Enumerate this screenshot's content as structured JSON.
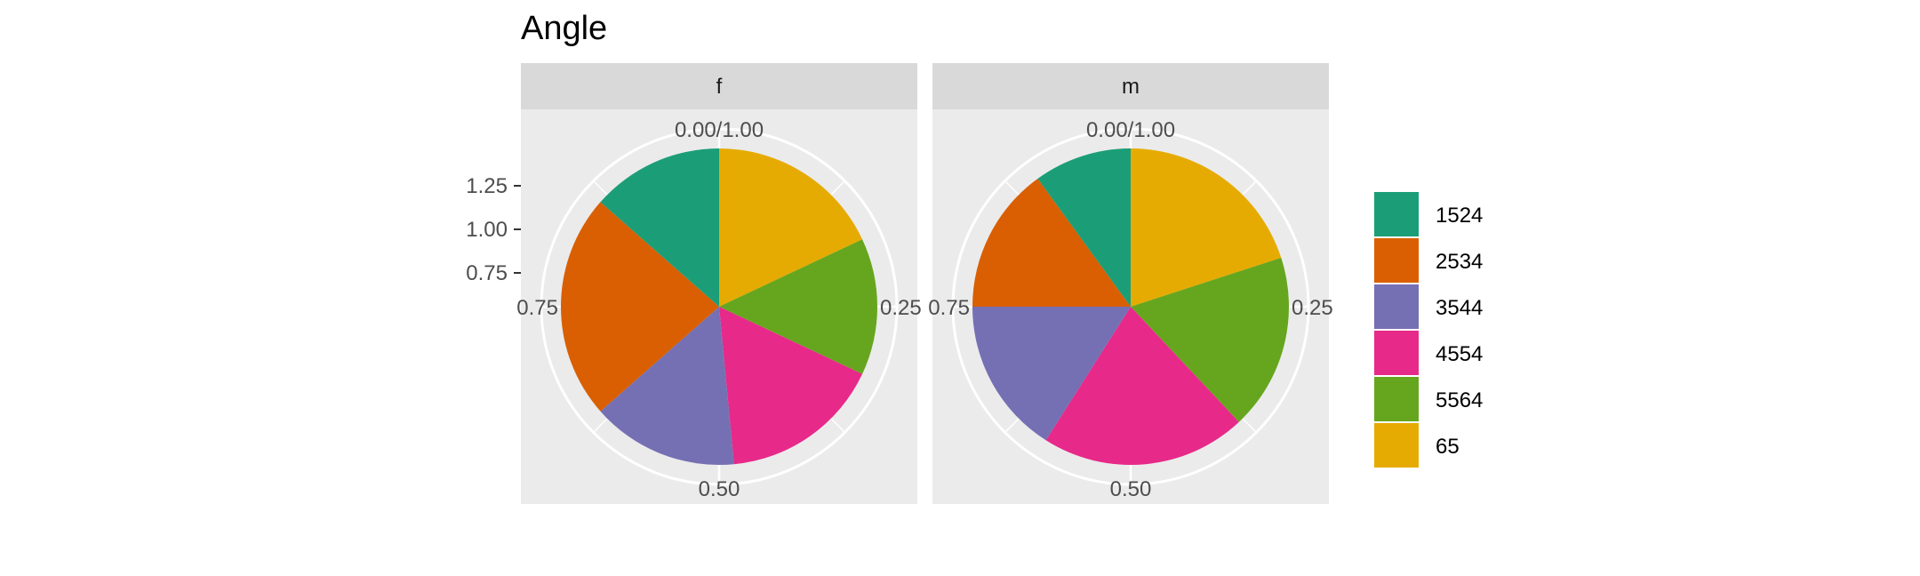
{
  "chart_data": {
    "type": "pie",
    "title": "Angle",
    "facets": [
      {
        "label": "f",
        "values": {
          "1524": 0.135,
          "2534": 0.23,
          "3544": 0.15,
          "4554": 0.165,
          "5564": 0.14,
          "65": 0.18
        }
      },
      {
        "label": "m",
        "values": {
          "1524": 0.1,
          "2534": 0.15,
          "3544": 0.16,
          "4554": 0.21,
          "5564": 0.18,
          "65": 0.2
        }
      }
    ],
    "categories": [
      "1524",
      "2534",
      "3544",
      "4554",
      "5564",
      "65"
    ],
    "colors": {
      "1524": "#1b9e77",
      "2534": "#d95f02",
      "3544": "#7570b3",
      "4554": "#e7298a",
      "5564": "#66a61e",
      "65": "#e6ab02"
    },
    "stack_order": [
      "65",
      "5564",
      "4554",
      "3544",
      "2534",
      "1524"
    ],
    "angle_ticks": [
      "0.00/1.00",
      "0.25",
      "0.50",
      "0.75"
    ],
    "y_ticks": [
      "0.75",
      "1.00",
      "1.25"
    ],
    "legend": {
      "position": "right",
      "entries": [
        "1524",
        "2534",
        "3544",
        "4554",
        "5564",
        "65"
      ]
    },
    "panel_background": "#ebebeb",
    "strip_background": "#d9d9d9",
    "grid": true
  }
}
